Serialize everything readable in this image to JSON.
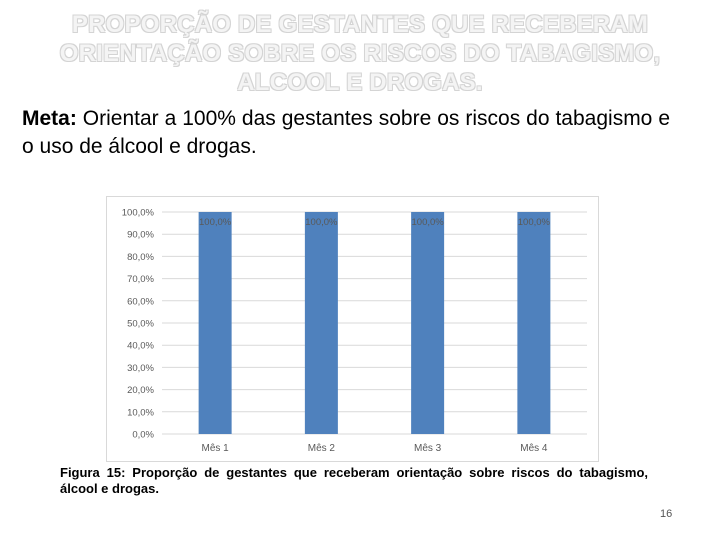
{
  "slide": {
    "title": "PROPORÇÃO DE GESTANTES QUE RECEBERAM ORIENTAÇÃO SOBRE OS RISCOS DO TABAGISMO, ALCOOL E DROGAS.",
    "meta_label": "Meta:",
    "meta_text": " Orientar a 100% das gestantes sobre os riscos do tabagismo e o uso de álcool e drogas.",
    "caption_prefix": "Figura 15:",
    "caption_text": " Proporção de gestantes que receberam orientação sobre riscos do tabagismo, álcool e drogas.",
    "page_number": "16"
  },
  "chart_data": {
    "type": "bar",
    "categories": [
      "Mês 1",
      "Mês 2",
      "Mês 3",
      "Mês 4"
    ],
    "values": [
      100.0,
      100.0,
      100.0,
      100.0
    ],
    "data_labels": [
      "100,0%",
      "100,0%",
      "100,0%",
      "100,0%"
    ],
    "y_ticks": [
      "0,0%",
      "10,0%",
      "20,0%",
      "30,0%",
      "40,0%",
      "50,0%",
      "60,0%",
      "70,0%",
      "80,0%",
      "90,0%",
      "100,0%"
    ],
    "ylim": [
      0,
      100
    ],
    "grid": true,
    "legend": "none",
    "bar_color": "#4f81bd",
    "grid_color": "#d9d9d9",
    "label_color": "#595959"
  }
}
